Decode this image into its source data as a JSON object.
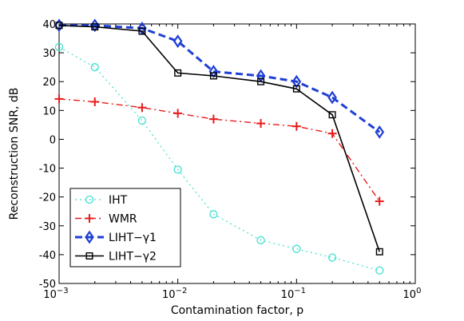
{
  "chart_data": {
    "type": "line",
    "title": "",
    "xlabel": "Contamination factor, p",
    "ylabel": "Reconstruction SNR, dB",
    "xscale": "log",
    "xlim": [
      0.001,
      1
    ],
    "ylim": [
      -50,
      40
    ],
    "x_ticks": [
      {
        "value": 0.001,
        "base": "10",
        "exp": "−3"
      },
      {
        "value": 0.01,
        "base": "10",
        "exp": "−2"
      },
      {
        "value": 0.1,
        "base": "10",
        "exp": "−1"
      },
      {
        "value": 1,
        "base": "10",
        "exp": "0"
      }
    ],
    "y_ticks": [
      -50,
      -40,
      -30,
      -20,
      -10,
      0,
      10,
      20,
      30,
      40
    ],
    "grid": false,
    "legend_position": "bottom-left",
    "x": [
      0.001,
      0.002,
      0.005,
      0.01,
      0.02,
      0.05,
      0.1,
      0.2,
      0.5
    ],
    "series": [
      {
        "name": "IHT",
        "legend_label": "IHT",
        "color": "#40e0d0",
        "dash": "dotted",
        "marker": "circle",
        "values": [
          32,
          25,
          6.5,
          -10.5,
          -26,
          -35,
          -38,
          -41,
          -45.5
        ]
      },
      {
        "name": "WMR",
        "legend_label": "WMR",
        "color": "#e81c1c",
        "dash": "dashdot",
        "marker": "plus",
        "values": [
          14,
          13,
          11,
          9,
          7,
          5.5,
          4.5,
          2,
          -21.5
        ]
      },
      {
        "name": "LIHT-γ1",
        "legend_base": "LIHT−",
        "legend_greek": "γ",
        "legend_sub": "1",
        "color": "#1f3fd6",
        "dash": "dashed",
        "marker": "diamond",
        "values": [
          39.5,
          39.5,
          38.5,
          34,
          23.5,
          22,
          20,
          14.5,
          2.5
        ]
      },
      {
        "name": "LIHT-γ2",
        "legend_base": "LIHT−",
        "legend_greek": "γ",
        "legend_sub": "2",
        "color": "#000000",
        "dash": "solid",
        "marker": "square",
        "values": [
          39.5,
          39,
          37.5,
          23,
          22,
          20,
          17.5,
          8.5,
          -39
        ]
      }
    ]
  }
}
